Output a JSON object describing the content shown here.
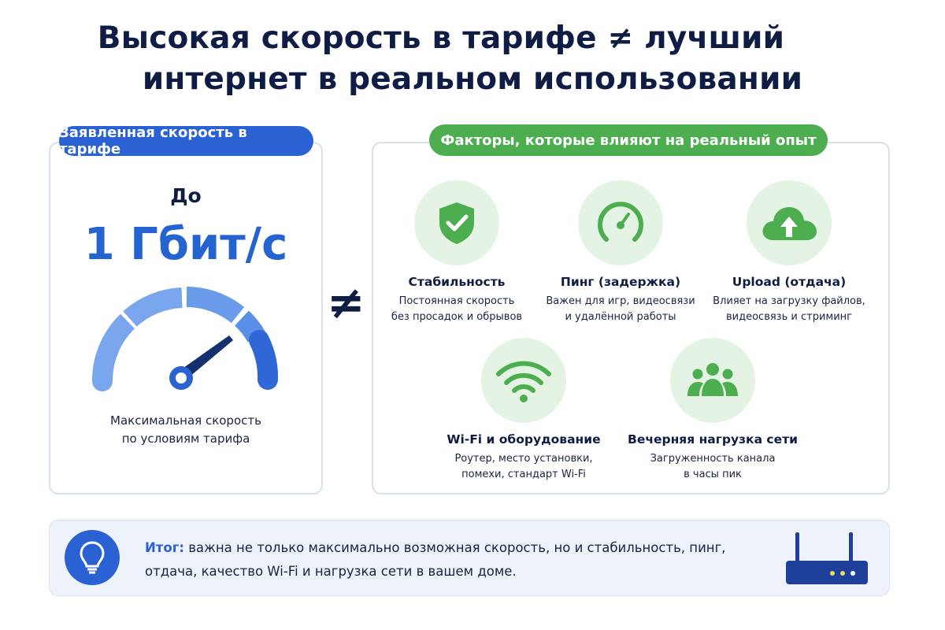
{
  "title": {
    "line1": "Высокая скорость в тарифе ≠ лучший",
    "line2": "интернет в реальном использовании"
  },
  "left_card": {
    "header": "Заявленная скорость в тарифе",
    "prefix": "До",
    "speed": "1 Гбит/с",
    "caption_line1": "Максимальная скорость",
    "caption_line2": "по условиям тарифа",
    "gauge_icon": "speedometer-icon"
  },
  "not_equal": "≠",
  "right_card": {
    "header": "Факторы, которые влияют на реальный опыт",
    "factors": [
      {
        "icon": "shield-check-icon",
        "title": "Стабильность",
        "desc1": "Постоянная скорость",
        "desc2": "без просадок и обрывов"
      },
      {
        "icon": "gauge-icon",
        "title": "Пинг (задержка)",
        "desc1": "Важен для игр, видеосвязи",
        "desc2": "и удалённой работы"
      },
      {
        "icon": "cloud-upload-icon",
        "title": "Upload (отдача)",
        "desc1": "Влияет на загрузку файлов,",
        "desc2": "видеосвязь и стриминг"
      },
      {
        "icon": "wifi-icon",
        "title": "Wi-Fi и оборудование",
        "desc1": "Роутер, место установки,",
        "desc2": "помехи, стандарт Wi-Fi"
      },
      {
        "icon": "users-icon",
        "title": "Вечерняя нагрузка сети",
        "desc1": "Загруженность канала",
        "desc2": "в часы пик"
      }
    ]
  },
  "summary": {
    "label": "Итог:",
    "text": "важна не только максимально возможная скорость, но и стабильность, пинг, отдача, качество Wi-Fi и нагрузка сети в вашем доме."
  },
  "colors": {
    "blue": "#2a62d4",
    "green": "#4caf50",
    "navy": "#0f1d45",
    "light_green": "#e5f3e4"
  }
}
